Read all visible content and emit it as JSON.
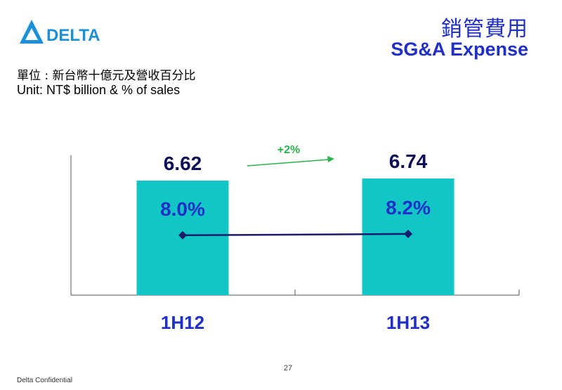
{
  "header": {
    "title_zh": "銷管費用",
    "title_en": "SG&A Expense",
    "logo_text": "DELTA"
  },
  "unit": {
    "zh": "單位 : 新台幣十億元及營收百分比",
    "en": "Unit: NT$ billion & % of sales"
  },
  "chart_data": {
    "type": "bar",
    "categories": [
      "1H12",
      "1H13"
    ],
    "series": [
      {
        "values": [
          6.62,
          6.74
        ],
        "value_labels": [
          "6.62",
          "6.74"
        ],
        "color": "#13c6c6"
      },
      {
        "type": "line",
        "values": [
          8.0,
          8.2
        ],
        "value_labels": [
          "8.0%",
          "8.2%"
        ],
        "color": "#1a1a6e"
      }
    ],
    "annotation": {
      "text": "+2%",
      "color": "#2ab24a"
    },
    "grid": false
  },
  "colors": {
    "title": "#1f2fc8",
    "bar": "#13c6c6",
    "value_label": "#0d0d5a",
    "pct_label": "#1f2fc8",
    "line": "#1a1a6e",
    "growth": "#2ab24a",
    "axis": "#555555"
  },
  "footer": {
    "page": "27",
    "confidential": "Delta Confidential"
  }
}
